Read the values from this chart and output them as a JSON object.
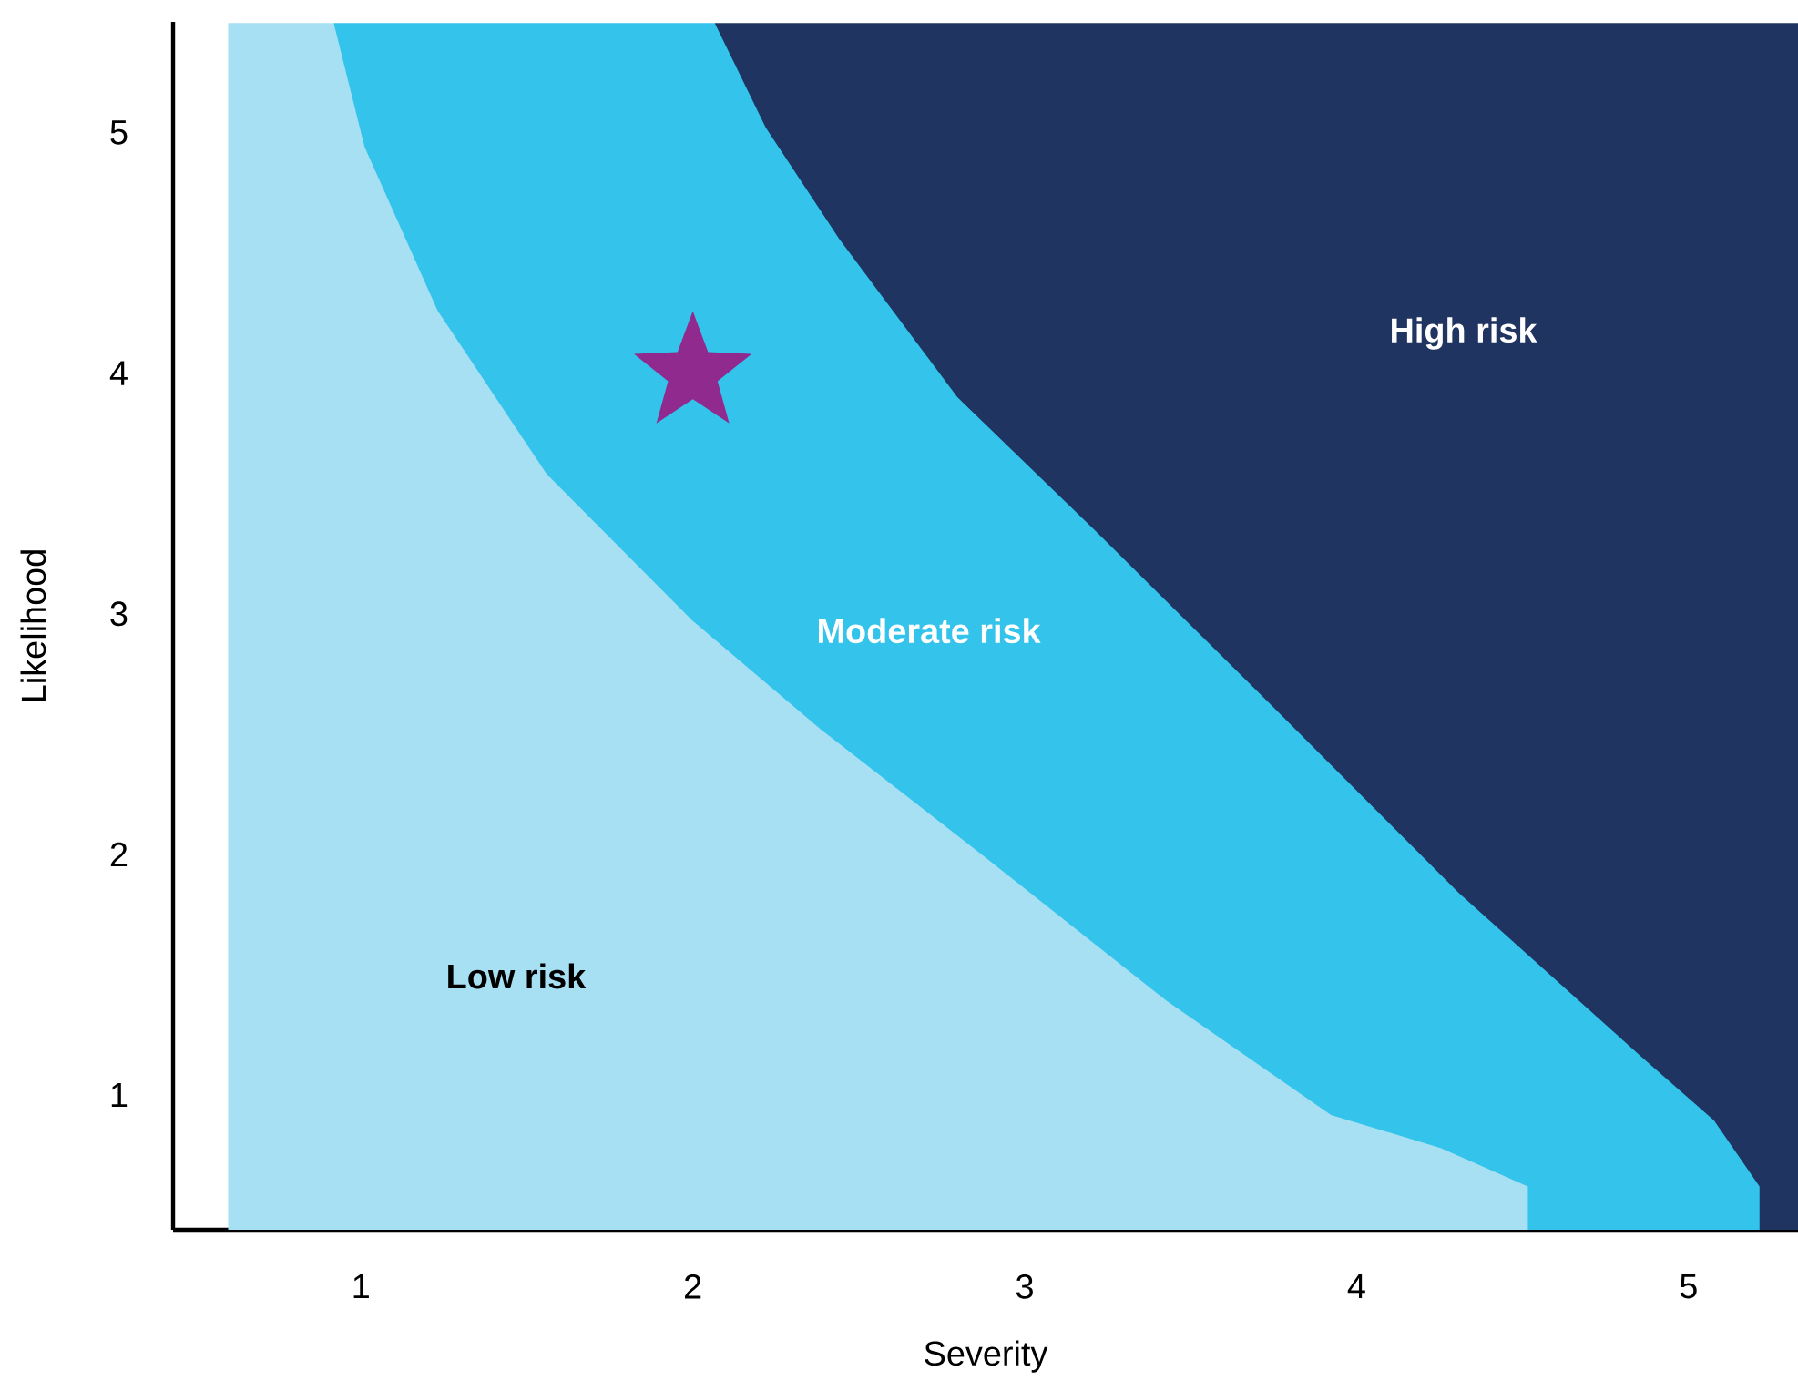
{
  "chart_data": {
    "type": "area",
    "xlabel": "Severity",
    "ylabel": "Likelihood",
    "xlim": [
      0.434,
      5.33
    ],
    "ylim": [
      0.44,
      5.46
    ],
    "xticks": [
      1,
      2,
      3,
      4,
      5
    ],
    "yticks": [
      1,
      2,
      3,
      4,
      5
    ],
    "legend": false,
    "series": [
      {
        "name": "High risk",
        "color": "#1f3461",
        "x": [
          2.066,
          3.0,
          4.0,
          5.0,
          5.33
        ],
        "values": [
          5.455,
          5.455,
          5.455,
          5.455,
          5.455
        ]
      },
      {
        "name": "Moderate risk",
        "color": "#33c3eb",
        "x": [
          0.918,
          2.066,
          2.22,
          2.44,
          2.797,
          3.209,
          3.758,
          4.308,
          4.857,
          5.077,
          5.214
        ],
        "values": [
          5.455,
          5.455,
          5.02,
          4.56,
          3.9,
          3.35,
          2.6,
          1.84,
          1.16,
          0.894,
          0.62
        ]
      },
      {
        "name": "Low risk",
        "color": "#a7dff3",
        "x": [
          0.6,
          0.918,
          1.011,
          1.231,
          1.56,
          2.0,
          2.385,
          2.879,
          3.429,
          3.923,
          4.253,
          4.516
        ],
        "values": [
          5.455,
          5.455,
          4.94,
          4.26,
          3.58,
          2.97,
          2.52,
          1.99,
          1.39,
          0.917,
          0.78,
          0.62
        ]
      },
      {
        "type": "scatter",
        "color": "#912a8e",
        "marker": "star",
        "x": [
          2.0
        ],
        "values": [
          4.0
        ]
      }
    ]
  }
}
